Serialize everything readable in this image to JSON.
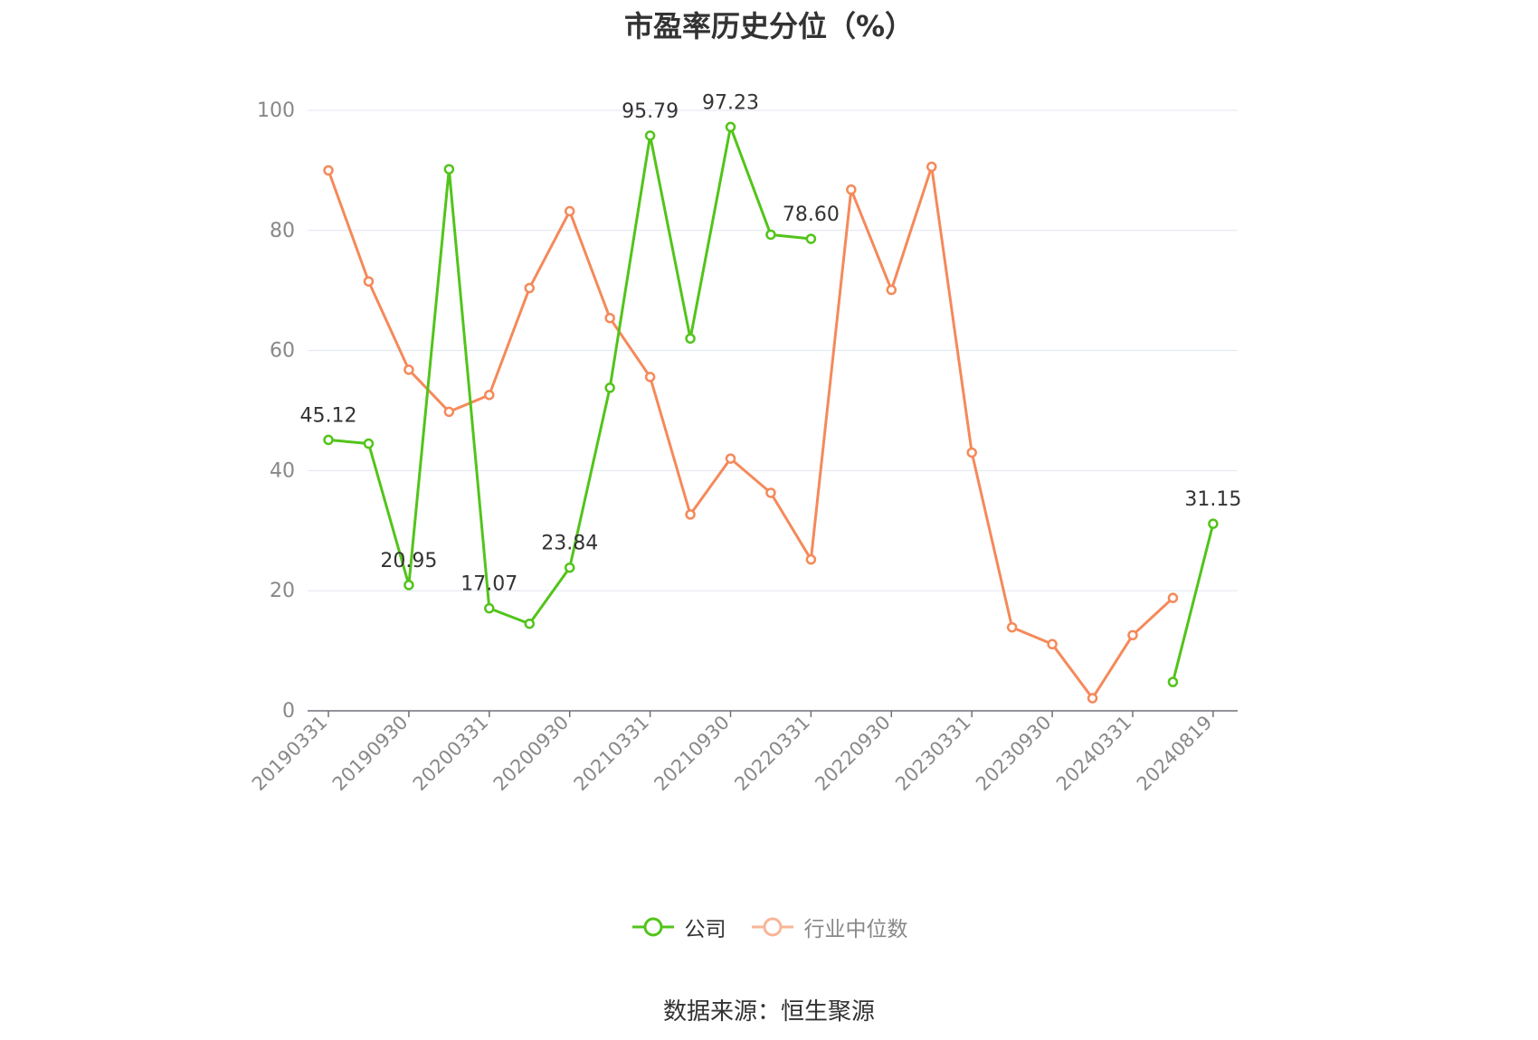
{
  "chart_data": {
    "type": "line",
    "title": "市盈率历史分位（%）",
    "x": [
      "20190331",
      "20190630",
      "20190930",
      "20191231",
      "20200331",
      "20200630",
      "20200930",
      "20201231",
      "20210331",
      "20210630",
      "20210930",
      "20211231",
      "20220331",
      "20220630",
      "20220930",
      "20221231",
      "20230331",
      "20230630",
      "20230930",
      "20231231",
      "20240331",
      "20240630",
      "20240819"
    ],
    "x_tick_labels": [
      "20190331",
      "20190930",
      "20200331",
      "20200930",
      "20210331",
      "20210930",
      "20220331",
      "20220930",
      "20230331",
      "20230930",
      "20240331",
      "20240819"
    ],
    "ylim": [
      0,
      100
    ],
    "y_ticks": [
      0,
      20,
      40,
      60,
      80,
      100
    ],
    "grid": true,
    "legend_position": "bottom",
    "series": [
      {
        "name": "公司",
        "color": "#52c41a",
        "values": [
          45.12,
          44.5,
          20.95,
          90.2,
          17.07,
          14.5,
          23.84,
          53.8,
          95.79,
          62.0,
          97.23,
          79.3,
          78.6,
          null,
          null,
          null,
          null,
          null,
          null,
          null,
          null,
          4.8,
          31.15
        ],
        "labeled": {
          "0": "45.12",
          "2": "20.95",
          "4": "17.07",
          "6": "23.84",
          "8": "95.79",
          "10": "97.23",
          "12": "78.60",
          "22": "31.15"
        }
      },
      {
        "name": "行业中位数",
        "color": "#f5895a",
        "values": [
          90.0,
          71.5,
          56.8,
          49.8,
          52.6,
          70.4,
          83.2,
          65.4,
          55.6,
          32.7,
          42.0,
          36.3,
          25.2,
          86.8,
          70.1,
          90.6,
          43.0,
          13.9,
          11.1,
          2.1,
          12.6,
          18.8,
          null
        ]
      }
    ]
  },
  "legend": {
    "company": "公司",
    "industry": "行业中位数"
  },
  "source": "数据来源：恒生聚源"
}
